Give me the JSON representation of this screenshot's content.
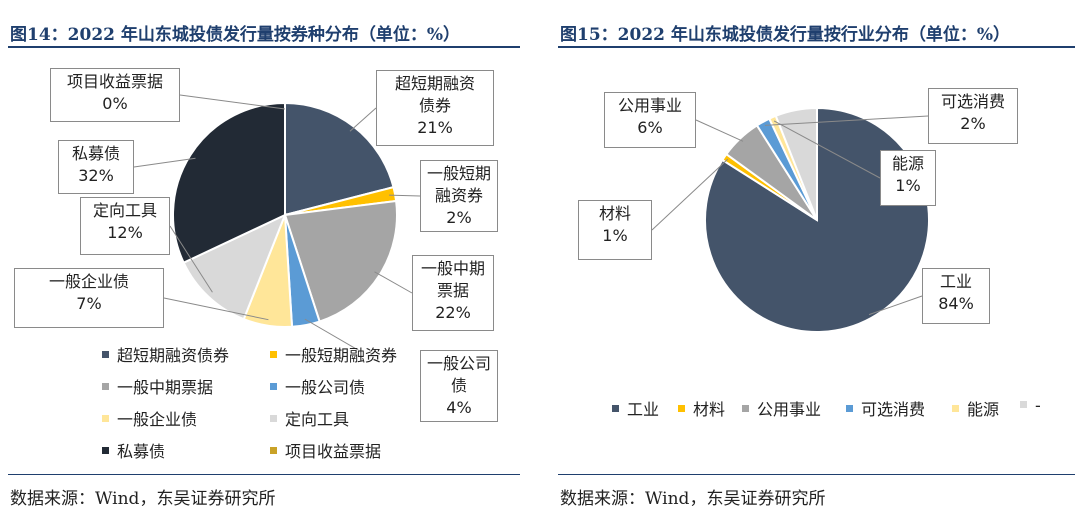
{
  "left": {
    "title": "图14：2022 年山东城投债发行量按券种分布（单位：%）",
    "source": "数据来源：Wind，东吴证券研究所",
    "chart_data": {
      "type": "pie",
      "unit": "%",
      "slices": [
        {
          "name": "超短期融资债券",
          "label": "超短期融资债券",
          "value": 21,
          "display": "21%",
          "color": "#44546a"
        },
        {
          "name": "一般短期融资券",
          "label": "一般短期融资券",
          "value": 2,
          "display": "2%",
          "color": "#ffc000"
        },
        {
          "name": "一般中期票据",
          "label": "一般中期票据",
          "value": 22,
          "display": "22%",
          "color": "#a5a5a5"
        },
        {
          "name": "一般公司债",
          "label": "一般公司债",
          "value": 4,
          "display": "4%",
          "color": "#5b9bd5"
        },
        {
          "name": "一般企业债",
          "label": "一般企业债",
          "value": 7,
          "display": "7%",
          "color": "#ffe699"
        },
        {
          "name": "定向工具",
          "label": "定向工具",
          "value": 12,
          "display": "12%",
          "color": "#d9d9d9"
        },
        {
          "name": "私募债",
          "label": "私募债",
          "value": 32,
          "display": "32%",
          "color": "#222a35"
        },
        {
          "name": "项目收益票据",
          "label": "项目收益票据",
          "value": 0,
          "display": "0%",
          "color": "#c9a227"
        }
      ],
      "callout_labels": [
        "超短期融资\n债券",
        "一般短期\n融资券",
        "一般中期\n票据",
        "一般公司\n债",
        "一般企业债",
        "定向工具",
        "私募债",
        "项目收益票据"
      ],
      "legend_placement": "bottom"
    }
  },
  "right": {
    "title": "图15：2022 年山东城投债发行量按行业分布（单位：%）",
    "source": "数据来源：Wind，东吴证券研究所",
    "chart_data": {
      "type": "pie",
      "unit": "%",
      "slices": [
        {
          "name": "工业",
          "label": "工业",
          "value": 84,
          "display": "84%",
          "color": "#44546a"
        },
        {
          "name": "材料",
          "label": "材料",
          "value": 1,
          "display": "1%",
          "color": "#ffc000"
        },
        {
          "name": "公用事业",
          "label": "公用事业",
          "value": 6,
          "display": "6%",
          "color": "#a5a5a5"
        },
        {
          "name": "可选消费",
          "label": "可选消费",
          "value": 2,
          "display": "2%",
          "color": "#5b9bd5"
        },
        {
          "name": "能源",
          "label": "能源",
          "value": 1,
          "display": "1%",
          "color": "#ffe699"
        },
        {
          "name": "-",
          "label": "-",
          "value": 6,
          "display": "",
          "color": "#d9d9d9"
        }
      ],
      "legend_placement": "bottom"
    }
  }
}
